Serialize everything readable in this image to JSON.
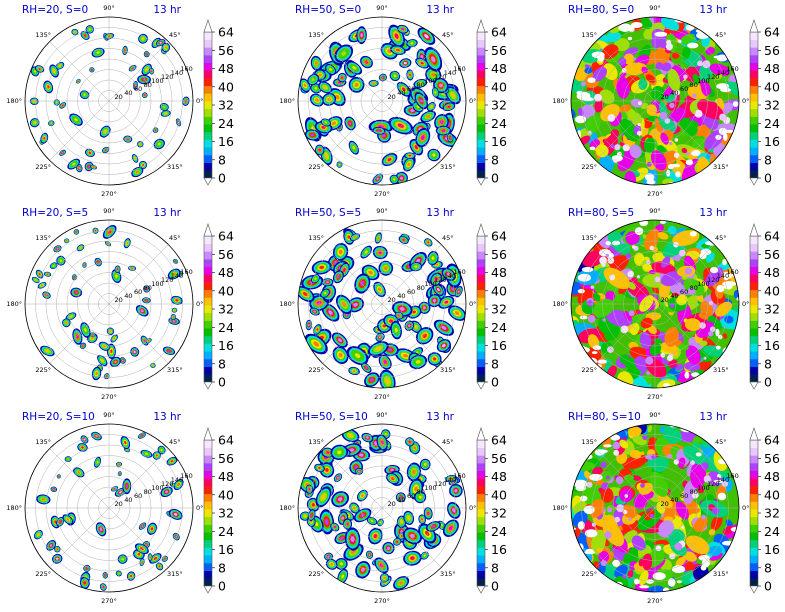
{
  "chart_data": {
    "type": "heatmap",
    "projection": "polar",
    "grid": true,
    "angle_ticks": [
      "0°",
      "45°",
      "90°",
      "135°",
      "180°",
      "225°",
      "270°",
      "315°"
    ],
    "radial_ticks": [
      20,
      40,
      60,
      80,
      100,
      120,
      140,
      160
    ],
    "colorbar": {
      "ticks": [
        0,
        8,
        16,
        24,
        32,
        40,
        48,
        56,
        64
      ],
      "min": 0,
      "max": 64,
      "extend": "both",
      "colors": [
        "#00204d",
        "#0000a8",
        "#0060ff",
        "#00b0ff",
        "#00e0e0",
        "#00d27a",
        "#00c000",
        "#40d000",
        "#a0e000",
        "#e8e800",
        "#ffc000",
        "#ff8000",
        "#ff2000",
        "#ff0060",
        "#e800e8",
        "#b040ff",
        "#c888ff",
        "#e8c8ff",
        "#f6e6ff"
      ],
      "under_color": "#ffffff",
      "over_color": "#ffffff"
    },
    "panels": [
      {
        "title": "RH=20, S=0",
        "time": "13 hr",
        "rh": 20,
        "s": 0
      },
      {
        "title": "RH=50, S=0",
        "time": "13 hr",
        "rh": 50,
        "s": 0
      },
      {
        "title": "RH=80, S=0",
        "time": "13 hr",
        "rh": 80,
        "s": 0
      },
      {
        "title": "RH=20, S=5",
        "time": "13 hr",
        "rh": 20,
        "s": 5
      },
      {
        "title": "RH=50, S=5",
        "time": "13 hr",
        "rh": 50,
        "s": 5
      },
      {
        "title": "RH=80, S=5",
        "time": "13 hr",
        "rh": 80,
        "s": 5
      },
      {
        "title": "RH=20, S=10",
        "time": "13 hr",
        "rh": 20,
        "s": 10
      },
      {
        "title": "RH=50, S=10",
        "time": "13 hr",
        "rh": 50,
        "s": 10
      },
      {
        "title": "RH=80, S=10",
        "time": "13 hr",
        "rh": 80,
        "s": 10
      }
    ]
  }
}
